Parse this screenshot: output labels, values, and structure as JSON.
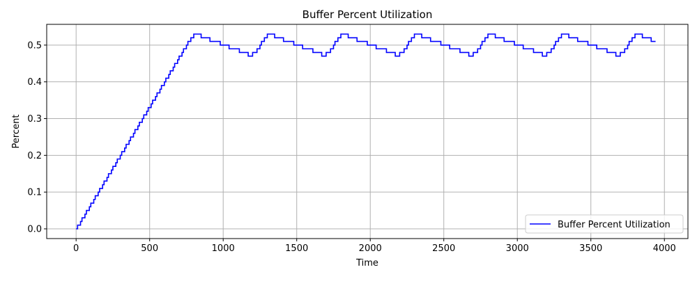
{
  "chart_data": {
    "type": "line",
    "title": "Buffer Percent Utilization",
    "xlabel": "Time",
    "ylabel": "Percent",
    "xlim": [
      -200,
      4160
    ],
    "ylim": [
      -0.0265,
      0.5565
    ],
    "x_ticks": [
      0,
      500,
      1000,
      1500,
      2000,
      2500,
      3000,
      3500,
      4000
    ],
    "x_tick_labels": [
      "0",
      "500",
      "1000",
      "1500",
      "2000",
      "2500",
      "3000",
      "3500",
      "4000"
    ],
    "y_ticks": [
      0.0,
      0.1,
      0.2,
      0.3,
      0.4,
      0.5
    ],
    "y_tick_labels": [
      "0.0",
      "0.1",
      "0.2",
      "0.3",
      "0.4",
      "0.5"
    ],
    "grid": true,
    "legend_position": "lower-right",
    "step": 10,
    "series": [
      {
        "name": "Buffer Percent Utilization",
        "color": "#0000ff",
        "x": [
          0,
          780,
          820,
          860,
          940,
          1000,
          1060,
          1140,
          1180,
          1220,
          1280,
          1320,
          1360,
          1440,
          1500,
          1560,
          1640,
          1680,
          1720,
          1780,
          1820,
          1860,
          1940,
          2000,
          2060,
          2140,
          2180,
          2220,
          2280,
          2320,
          2360,
          2440,
          2500,
          2560,
          2640,
          2680,
          2720,
          2780,
          2820,
          2860,
          2940,
          3000,
          3060,
          3140,
          3180,
          3220,
          3280,
          3320,
          3360,
          3440,
          3500,
          3560,
          3640,
          3680,
          3720,
          3780,
          3820,
          3860,
          3940
        ],
        "y": [
          0.0,
          0.52,
          0.53,
          0.52,
          0.51,
          0.5,
          0.49,
          0.48,
          0.47,
          0.48,
          0.52,
          0.53,
          0.52,
          0.51,
          0.5,
          0.49,
          0.48,
          0.47,
          0.48,
          0.52,
          0.53,
          0.52,
          0.51,
          0.5,
          0.49,
          0.48,
          0.47,
          0.48,
          0.52,
          0.53,
          0.52,
          0.51,
          0.5,
          0.49,
          0.48,
          0.47,
          0.48,
          0.52,
          0.53,
          0.52,
          0.51,
          0.5,
          0.49,
          0.48,
          0.47,
          0.48,
          0.52,
          0.53,
          0.52,
          0.51,
          0.5,
          0.49,
          0.48,
          0.47,
          0.48,
          0.52,
          0.53,
          0.52,
          0.51
        ]
      }
    ]
  }
}
